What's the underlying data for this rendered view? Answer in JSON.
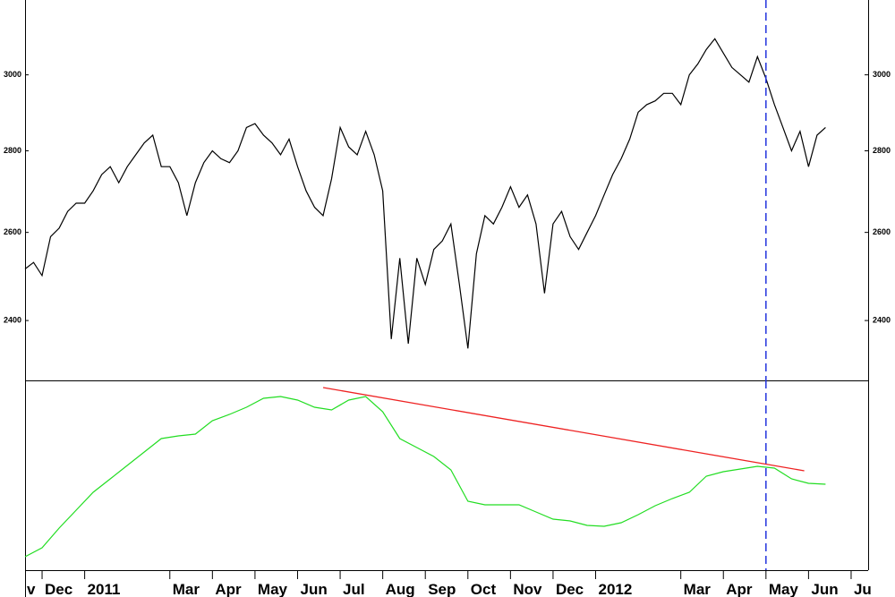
{
  "chart_data": [
    {
      "type": "line",
      "log": true,
      "color": "#000000",
      "xlim": [
        -0.4,
        19.4
      ],
      "ylim": [
        2273,
        3211
      ],
      "yticks": [
        2400,
        2600,
        2800,
        3000
      ],
      "vline": 17.0,
      "vline_color": "#2233dd",
      "x": [
        -0.4,
        -0.2,
        0,
        0.2,
        0.4,
        0.6,
        0.8,
        1.0,
        1.2,
        1.4,
        1.6,
        1.8,
        2.0,
        2.2,
        2.4,
        2.6,
        2.8,
        3.0,
        3.2,
        3.4,
        3.6,
        3.8,
        4.0,
        4.2,
        4.4,
        4.6,
        4.8,
        5.0,
        5.2,
        5.4,
        5.6,
        5.8,
        6.0,
        6.2,
        6.4,
        6.6,
        6.8,
        7.0,
        7.2,
        7.4,
        7.6,
        7.8,
        8.0,
        8.2,
        8.4,
        8.6,
        8.8,
        9.0,
        9.2,
        9.4,
        9.6,
        9.8,
        10.0,
        10.2,
        10.4,
        10.6,
        10.8,
        11.0,
        11.2,
        11.4,
        11.6,
        11.8,
        12.0,
        12.2,
        12.4,
        12.6,
        12.8,
        13.0,
        13.2,
        13.4,
        13.6,
        13.8,
        14.0,
        14.2,
        14.4,
        14.6,
        14.8,
        15.0,
        15.2,
        15.4,
        15.6,
        15.8,
        16.0,
        16.2,
        16.4,
        16.6,
        16.8,
        17.0,
        17.2,
        17.4,
        17.6,
        17.8,
        18.0,
        18.2,
        18.4
      ],
      "values": [
        2515,
        2530,
        2500,
        2590,
        2610,
        2650,
        2670,
        2670,
        2700,
        2740,
        2760,
        2720,
        2760,
        2790,
        2820,
        2840,
        2760,
        2760,
        2720,
        2640,
        2720,
        2770,
        2800,
        2780,
        2770,
        2800,
        2860,
        2870,
        2840,
        2820,
        2790,
        2830,
        2760,
        2700,
        2660,
        2640,
        2730,
        2860,
        2810,
        2790,
        2850,
        2790,
        2700,
        2360,
        2540,
        2350,
        2540,
        2480,
        2560,
        2580,
        2620,
        2480,
        2340,
        2550,
        2640,
        2620,
        2660,
        2710,
        2660,
        2690,
        2620,
        2460,
        2620,
        2650,
        2590,
        2560,
        2600,
        2640,
        2690,
        2740,
        2780,
        2830,
        2900,
        2920,
        2930,
        2950,
        2950,
        2920,
        3000,
        3030,
        3070,
        3100,
        3060,
        3020,
        3000,
        2980,
        3050,
        2990,
        2920,
        2860,
        2800,
        2850,
        2760,
        2840,
        2860
      ]
    },
    {
      "type": "line",
      "color": "#22dd22",
      "xlim": [
        -0.4,
        19.4
      ],
      "ylim": [
        0,
        212
      ],
      "vline": 17.0,
      "vline_color": "#2233dd",
      "xticks": [
        {
          "value": -1,
          "label": "v"
        },
        {
          "value": 0,
          "label": "Dec"
        },
        {
          "value": 1,
          "label": "2011"
        },
        {
          "value": 3,
          "label": "Mar"
        },
        {
          "value": 4,
          "label": "Apr"
        },
        {
          "value": 5,
          "label": "May"
        },
        {
          "value": 6,
          "label": "Jun"
        },
        {
          "value": 7,
          "label": "Jul"
        },
        {
          "value": 8,
          "label": "Aug"
        },
        {
          "value": 9,
          "label": "Sep"
        },
        {
          "value": 10,
          "label": "Oct"
        },
        {
          "value": 11,
          "label": "Nov"
        },
        {
          "value": 12,
          "label": "Dec"
        },
        {
          "value": 13,
          "label": "2012"
        },
        {
          "value": 15,
          "label": "Mar"
        },
        {
          "value": 16,
          "label": "Apr"
        },
        {
          "value": 17,
          "label": "May"
        },
        {
          "value": 18,
          "label": "Jun"
        },
        {
          "value": 19,
          "label": "Ju"
        }
      ],
      "x": [
        -0.4,
        0,
        0.4,
        0.8,
        1.2,
        1.6,
        2.0,
        2.4,
        2.8,
        3.2,
        3.6,
        4.0,
        4.4,
        4.8,
        5.2,
        5.6,
        6.0,
        6.4,
        6.8,
        7.2,
        7.6,
        8.0,
        8.4,
        8.8,
        9.2,
        9.6,
        10.0,
        10.4,
        10.8,
        11.2,
        11.6,
        12.0,
        12.4,
        12.8,
        13.2,
        13.6,
        14.0,
        14.4,
        14.8,
        15.2,
        15.6,
        16.0,
        16.4,
        16.8,
        17.2,
        17.6,
        18.0,
        18.4
      ],
      "values": [
        15,
        25,
        47,
        67,
        87,
        102,
        117,
        132,
        147,
        150,
        152,
        167,
        174,
        182,
        192,
        194,
        190,
        182,
        179,
        190,
        194,
        177,
        147,
        137,
        127,
        112,
        77,
        73,
        73,
        73,
        65,
        57,
        55,
        50,
        49,
        53,
        62,
        72,
        80,
        87,
        105,
        110,
        113,
        116,
        114,
        102,
        97,
        96
      ],
      "trendline": {
        "x": [
          6.6,
          17.9
        ],
        "values": [
          204,
          111
        ],
        "color": "#ee2222"
      }
    }
  ]
}
